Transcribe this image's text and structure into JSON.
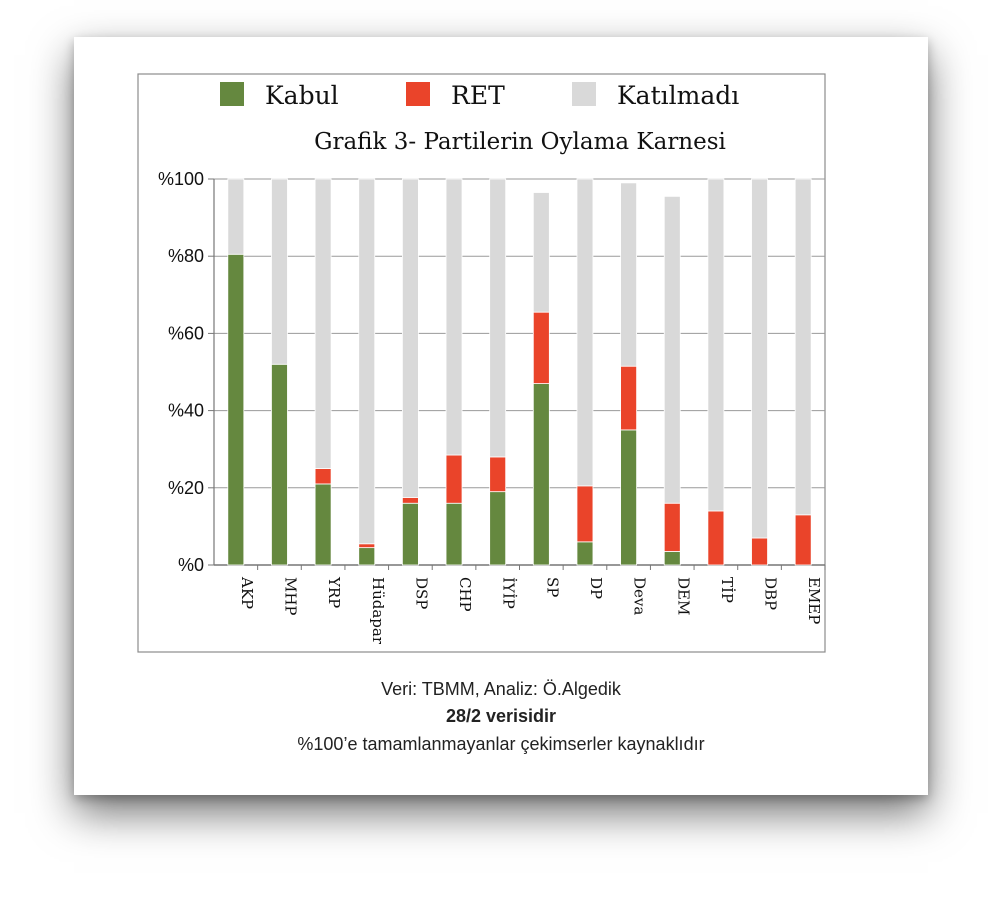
{
  "chart_data": {
    "type": "bar",
    "stacked": true,
    "title": "Grafik 3- Partilerin Oylama Karnesi",
    "categories": [
      "AKP",
      "MHP",
      "YRP",
      "Hüdapar",
      "DSP",
      "CHP",
      "İYİP",
      "SP",
      "DP",
      "Deva",
      "DEM",
      "TİP",
      "DBP",
      "EMEP"
    ],
    "series": [
      {
        "name": "Kabul",
        "color": "#65883f",
        "values": [
          80.5,
          52,
          21,
          4.5,
          16,
          16,
          19,
          47,
          6,
          35,
          3.5,
          0,
          0,
          0
        ]
      },
      {
        "name": "RET",
        "color": "#ea442a",
        "values": [
          0,
          0,
          4,
          1,
          1.5,
          12.5,
          9,
          18.5,
          14.5,
          16.5,
          12.5,
          14,
          7,
          13
        ]
      },
      {
        "name": "Katılmadı",
        "color": "#d9d9d9",
        "values": [
          19.5,
          48,
          75,
          94.5,
          82.5,
          71.5,
          72,
          31,
          79.5,
          47.5,
          79.5,
          86,
          93,
          87
        ]
      }
    ],
    "yticks": [
      "%0",
      "%20",
      "%40",
      "%60",
      "%80",
      "%100"
    ],
    "ylim": [
      0,
      100
    ],
    "grid": true,
    "legend": "top"
  },
  "footer": {
    "line1": "Veri: TBMM, Analiz: Ö.Algedik",
    "line2": "28/2 verisidir",
    "line3": "%100’e tamamlanmayanlar çekimserler kaynaklıdır"
  }
}
